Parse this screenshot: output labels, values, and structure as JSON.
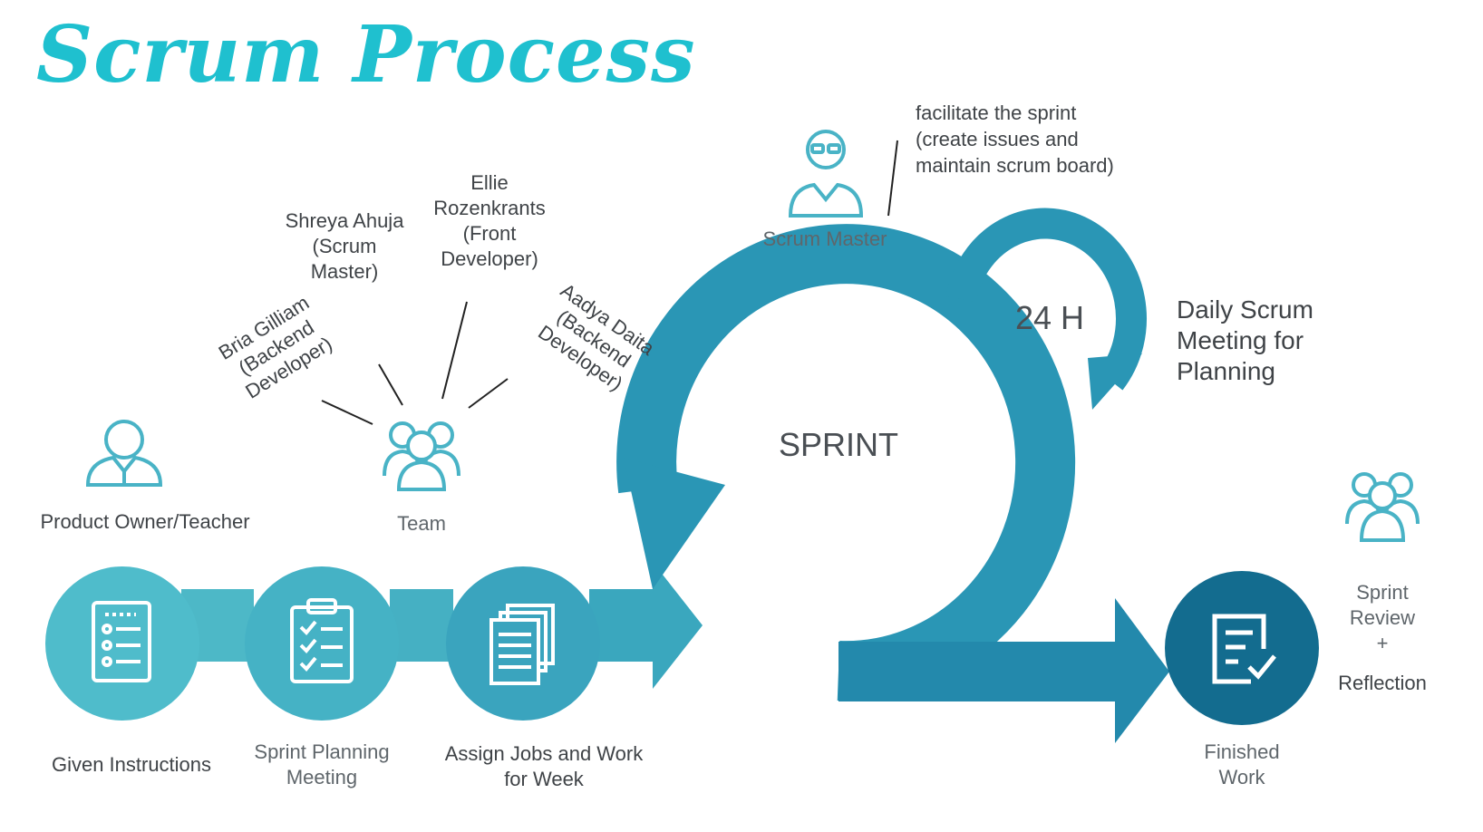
{
  "title": "Scrum Process",
  "colors": {
    "title": "#1fc0cf",
    "light_teal": "#4db8c7",
    "mid_teal": "#2a9cb8",
    "dark_teal": "#136c8f",
    "icon_stroke": "#49b3c6"
  },
  "roles": {
    "product_owner": {
      "label": "Product Owner/Teacher",
      "icon": "person-icon"
    },
    "team": {
      "label": "Team",
      "icon": "team-icon"
    },
    "scrum_master": {
      "label": "Scrum Master",
      "icon": "scrum-master-icon"
    }
  },
  "team_members": [
    {
      "name": "Bria Gilliam",
      "role": "(Backend",
      "role2": "Developer)"
    },
    {
      "name": "Shreya Ahuja",
      "role": "(Scrum",
      "role2": "Master)"
    },
    {
      "name": "Ellie",
      "role": "Rozenkrants",
      "role2": "(Front",
      "role3": "Developer)"
    },
    {
      "name": "Aadya Daita",
      "role": "(Backend",
      "role2": "Developer)"
    }
  ],
  "scrum_master_note": [
    "facilitate the sprint",
    "(create issues and",
    "maintain scrum board)"
  ],
  "sprint": {
    "label": "SPRINT",
    "cycle": "24 H"
  },
  "daily": [
    "Daily Scrum",
    "Meeting for",
    "Planning"
  ],
  "steps": [
    {
      "label": "Given Instructions",
      "icon": "checklist-icon"
    },
    {
      "label_1": "Sprint Planning",
      "label_2": "Meeting",
      "icon": "clipboard-icon"
    },
    {
      "label_1": "Assign Jobs and Work",
      "label_2": "for Week",
      "icon": "documents-icon"
    }
  ],
  "finished": {
    "label_1": "Finished",
    "label_2": "Work",
    "icon": "finished-doc-icon"
  },
  "review": {
    "line1": "Sprint",
    "line2": "Review",
    "line3": "+",
    "line4": "Reflection",
    "icon": "team-icon"
  }
}
